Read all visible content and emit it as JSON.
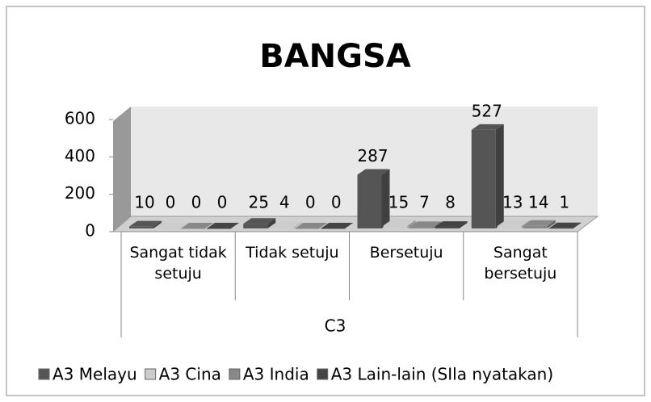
{
  "chart_data": {
    "type": "bar",
    "title": "BANGSA",
    "x_label": "C3",
    "categories": [
      "Sangat tidak setuju",
      "Tidak setuju",
      "Bersetuju",
      "Sangat bersetuju"
    ],
    "series": [
      {
        "name": "A3 Melayu",
        "color": "#555555",
        "values": [
          10,
          25,
          287,
          527
        ]
      },
      {
        "name": "A3 Cina",
        "color": "#cccccc",
        "values": [
          0,
          4,
          15,
          13
        ]
      },
      {
        "name": "A3 India",
        "color": "#888888",
        "values": [
          0,
          0,
          7,
          14
        ]
      },
      {
        "name": "A3 Lain-lain (SIla nyatakan)",
        "color": "#444444",
        "values": [
          0,
          0,
          8,
          1
        ]
      }
    ],
    "ylim": [
      0,
      600
    ],
    "yticks": [
      0,
      200,
      400,
      600
    ],
    "legend": "bottom"
  }
}
